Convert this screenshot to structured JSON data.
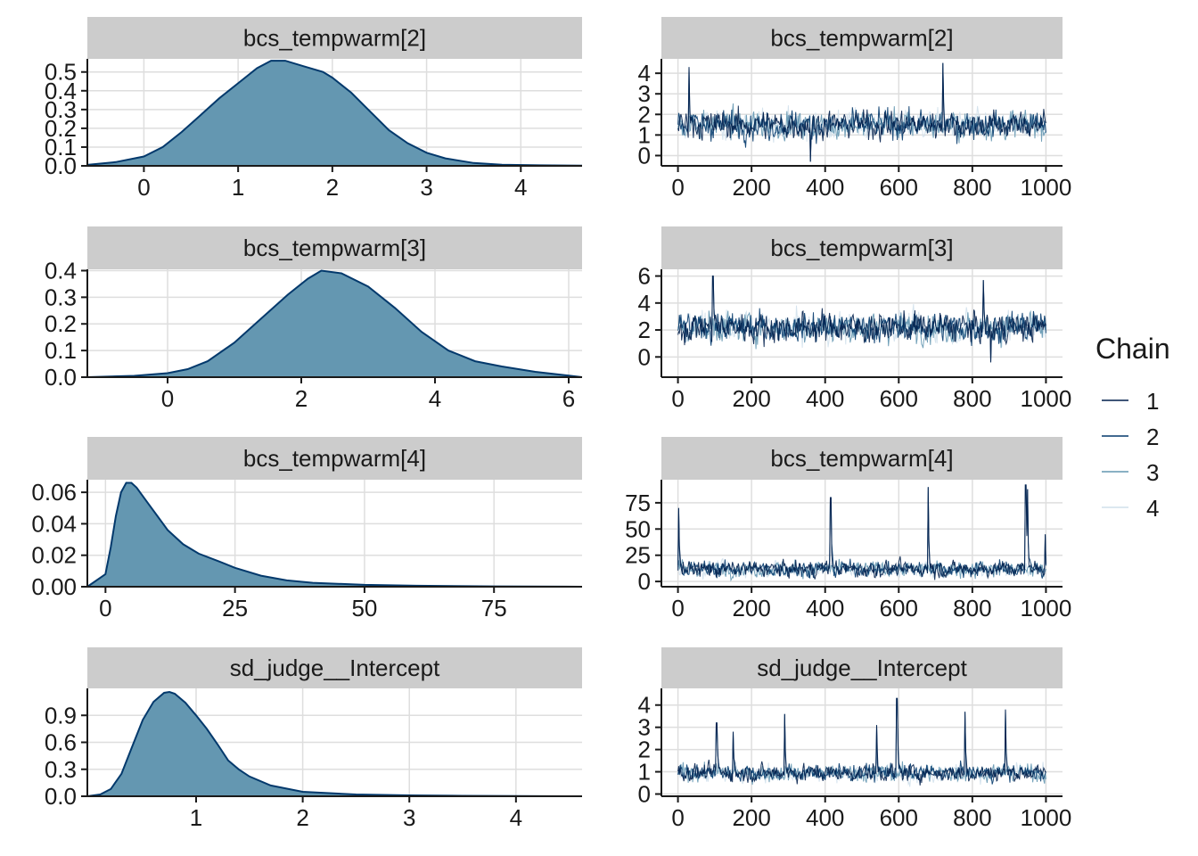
{
  "legend": {
    "title": "Chain",
    "entries": [
      {
        "label": "1",
        "color": "#011f4b"
      },
      {
        "label": "2",
        "color": "#03396c"
      },
      {
        "label": "3",
        "color": "#6497b1"
      },
      {
        "label": "4",
        "color": "#d1e1ec"
      }
    ]
  },
  "colors": {
    "density_fill": "#6497b1",
    "density_line": "#03396c",
    "strip_bg": "#cccccc",
    "grid": "#dedede"
  },
  "chart_data": [
    {
      "type": "area",
      "title": "bcs_tempwarm[2]",
      "xlim": [
        -0.6,
        4.65
      ],
      "ylim": [
        0,
        0.57
      ],
      "xticks": [
        0,
        1,
        2,
        3,
        4
      ],
      "yticks": [
        0.0,
        0.1,
        0.2,
        0.3,
        0.4,
        0.5
      ],
      "ytick_labels": [
        "0.0",
        "0.1",
        "0.2",
        "0.3",
        "0.4",
        "0.5"
      ],
      "x": [
        -0.6,
        -0.3,
        0.0,
        0.2,
        0.4,
        0.6,
        0.8,
        1.0,
        1.2,
        1.35,
        1.5,
        1.7,
        1.9,
        2.0,
        2.2,
        2.4,
        2.6,
        2.8,
        3.0,
        3.2,
        3.5,
        3.8,
        4.2,
        4.65
      ],
      "y": [
        0.005,
        0.02,
        0.05,
        0.1,
        0.18,
        0.27,
        0.36,
        0.44,
        0.52,
        0.56,
        0.56,
        0.53,
        0.5,
        0.47,
        0.39,
        0.29,
        0.19,
        0.12,
        0.07,
        0.04,
        0.015,
        0.006,
        0.003,
        0.001
      ]
    },
    {
      "type": "line",
      "title": "bcs_tempwarm[2]",
      "xlim": [
        -45,
        1045
      ],
      "ylim": [
        -0.5,
        4.7
      ],
      "xticks": [
        0,
        200,
        400,
        600,
        800,
        1000
      ],
      "yticks": [
        0,
        1,
        2,
        3,
        4
      ],
      "ytick_labels": [
        "0",
        "1",
        "2",
        "3",
        "4"
      ],
      "n": 1000,
      "center": 1.5,
      "spread": 0.8,
      "spikes": [
        [
          30,
          4.3
        ],
        [
          720,
          4.5
        ],
        [
          360,
          -0.3
        ]
      ]
    },
    {
      "type": "area",
      "title": "bcs_tempwarm[3]",
      "xlim": [
        -1.2,
        6.2
      ],
      "ylim": [
        0,
        0.405
      ],
      "xticks": [
        0,
        2,
        4,
        6
      ],
      "yticks": [
        0.0,
        0.1,
        0.2,
        0.3,
        0.4
      ],
      "ytick_labels": [
        "0.0",
        "0.1",
        "0.2",
        "0.3",
        "0.4"
      ],
      "x": [
        -1.2,
        -0.5,
        0.0,
        0.3,
        0.6,
        1.0,
        1.4,
        1.8,
        2.1,
        2.3,
        2.6,
        3.0,
        3.4,
        3.8,
        4.2,
        4.6,
        5.0,
        5.5,
        6.2
      ],
      "y": [
        0.0,
        0.005,
        0.015,
        0.03,
        0.06,
        0.13,
        0.22,
        0.31,
        0.37,
        0.4,
        0.39,
        0.34,
        0.26,
        0.17,
        0.1,
        0.06,
        0.04,
        0.02,
        0.0
      ]
    },
    {
      "type": "line",
      "title": "bcs_tempwarm[3]",
      "xlim": [
        -45,
        1045
      ],
      "ylim": [
        -1.5,
        6.5
      ],
      "xticks": [
        0,
        200,
        400,
        600,
        800,
        1000
      ],
      "yticks": [
        0,
        2,
        4,
        6
      ],
      "ytick_labels": [
        "0",
        "2",
        "4",
        "6"
      ],
      "n": 1000,
      "center": 2.2,
      "spread": 1.3,
      "spikes": [
        [
          95,
          6.0
        ],
        [
          830,
          5.7
        ],
        [
          850,
          -0.4
        ]
      ]
    },
    {
      "type": "area",
      "title": "bcs_tempwarm[4]",
      "xlim": [
        -3.5,
        92
      ],
      "ylim": [
        0,
        0.068
      ],
      "xticks": [
        0,
        25,
        50,
        75
      ],
      "yticks": [
        0.0,
        0.02,
        0.04,
        0.06
      ],
      "ytick_labels": [
        "0.00",
        "0.02",
        "0.04",
        "0.06"
      ],
      "x": [
        -3.5,
        0,
        1,
        2,
        3,
        4,
        5,
        6,
        8,
        10,
        12,
        15,
        18,
        22,
        25,
        30,
        35,
        40,
        50,
        60,
        75,
        92
      ],
      "y": [
        0.0,
        0.008,
        0.025,
        0.045,
        0.06,
        0.066,
        0.066,
        0.063,
        0.054,
        0.045,
        0.036,
        0.027,
        0.021,
        0.016,
        0.012,
        0.007,
        0.004,
        0.0025,
        0.0012,
        0.0006,
        0.0002,
        0.0
      ]
    },
    {
      "type": "line",
      "title": "bcs_tempwarm[4]",
      "xlim": [
        -45,
        1045
      ],
      "ylim": [
        -5,
        97
      ],
      "xticks": [
        0,
        200,
        400,
        600,
        800,
        1000
      ],
      "yticks": [
        0,
        25,
        50,
        75
      ],
      "ytick_labels": [
        "0",
        "25",
        "50",
        "75"
      ],
      "n": 1000,
      "center": 12,
      "spread": 9,
      "positive": true,
      "spikes": [
        [
          2,
          70
        ],
        [
          415,
          80
        ],
        [
          680,
          90
        ],
        [
          945,
          92
        ],
        [
          950,
          88
        ],
        [
          998,
          45
        ]
      ]
    },
    {
      "type": "area",
      "title": "sd_judge__Intercept",
      "xlim": [
        -0.02,
        4.62
      ],
      "ylim": [
        0,
        1.2
      ],
      "xticks": [
        1,
        2,
        3,
        4
      ],
      "yticks": [
        0.0,
        0.3,
        0.6,
        0.9
      ],
      "ytick_labels": [
        "0.0",
        "0.3",
        "0.6",
        "0.9"
      ],
      "x": [
        -0.02,
        0.1,
        0.2,
        0.3,
        0.4,
        0.5,
        0.6,
        0.7,
        0.75,
        0.8,
        0.9,
        1.0,
        1.1,
        1.2,
        1.3,
        1.4,
        1.5,
        1.7,
        2.0,
        2.5,
        3.0,
        3.5,
        4.0,
        4.62
      ],
      "y": [
        0.0,
        0.02,
        0.08,
        0.25,
        0.55,
        0.85,
        1.05,
        1.15,
        1.16,
        1.14,
        1.04,
        0.9,
        0.75,
        0.58,
        0.4,
        0.3,
        0.22,
        0.12,
        0.05,
        0.02,
        0.01,
        0.005,
        0.002,
        0.0
      ]
    },
    {
      "type": "line",
      "title": "sd_judge__Intercept",
      "xlim": [
        -45,
        1045
      ],
      "ylim": [
        -0.1,
        4.75
      ],
      "xticks": [
        0,
        200,
        400,
        600,
        800,
        1000
      ],
      "yticks": [
        0,
        1,
        2,
        3,
        4
      ],
      "ytick_labels": [
        "0",
        "1",
        "2",
        "3",
        "4"
      ],
      "n": 1000,
      "center": 0.95,
      "spread": 0.45,
      "positive": true,
      "spikes": [
        [
          105,
          3.2
        ],
        [
          290,
          3.6
        ],
        [
          595,
          4.3
        ],
        [
          780,
          3.7
        ],
        [
          890,
          3.8
        ],
        [
          150,
          2.8
        ],
        [
          540,
          3.1
        ]
      ]
    }
  ]
}
